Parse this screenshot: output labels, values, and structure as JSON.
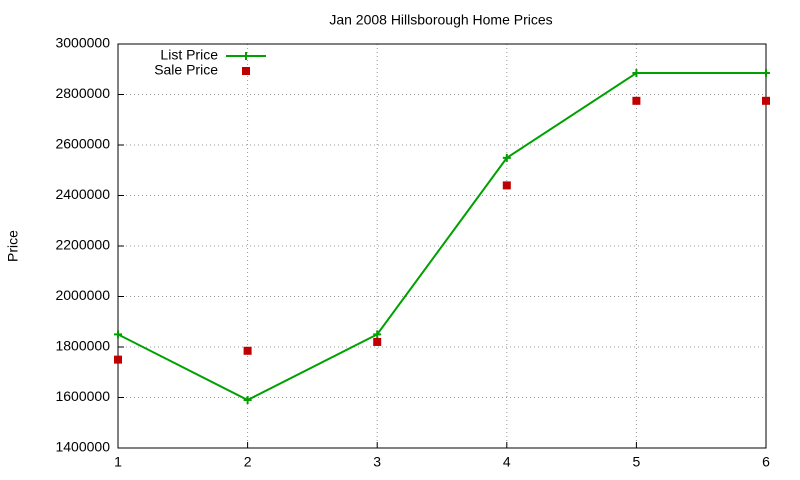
{
  "chart_data": {
    "type": "line",
    "title": "Jan 2008 Hillsborough Home Prices",
    "ylabel": "Price",
    "x": [
      1,
      2,
      3,
      4,
      5,
      6
    ],
    "series": [
      {
        "name": "List Price",
        "color": "#00a000",
        "style": "line",
        "values": [
          1850000,
          1590000,
          1850000,
          2549000,
          2885000,
          2885000
        ]
      },
      {
        "name": "Sale Price",
        "color": "#c00000",
        "style": "points",
        "values": [
          1750000,
          1785000,
          1820000,
          2440000,
          2775000,
          2775000
        ]
      }
    ],
    "xlim": [
      1,
      6
    ],
    "xticks": [
      1,
      2,
      3,
      4,
      5,
      6
    ],
    "ylim": [
      1400000,
      3000000
    ],
    "yticks": [
      1400000,
      1600000,
      1800000,
      2000000,
      2200000,
      2400000,
      2600000,
      2800000,
      3000000
    ],
    "grid": true,
    "legend": "top-left"
  }
}
